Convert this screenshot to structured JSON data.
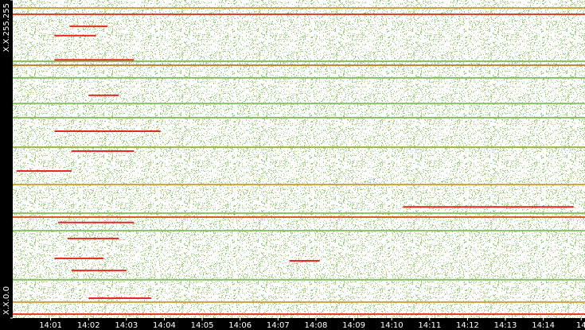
{
  "chart_data": {
    "type": "address-time-map",
    "xlim": [
      0,
      15.1
    ],
    "xticks": [
      {
        "value": 1,
        "label": "14:01"
      },
      {
        "value": 2,
        "label": "14:02"
      },
      {
        "value": 3,
        "label": "14:03"
      },
      {
        "value": 4,
        "label": "14:04"
      },
      {
        "value": 5,
        "label": "14:05"
      },
      {
        "value": 6,
        "label": "14:06"
      },
      {
        "value": 7,
        "label": "14:07"
      },
      {
        "value": 8,
        "label": "14:08"
      },
      {
        "value": 9,
        "label": "14:09"
      },
      {
        "value": 10,
        "label": "14:10"
      },
      {
        "value": 11,
        "label": "14:11"
      },
      {
        "value": 12,
        "label": "14:12"
      },
      {
        "value": 13,
        "label": "14:13"
      },
      {
        "value": 14,
        "label": "14:14"
      },
      {
        "value": 15,
        "label": "14"
      }
    ],
    "ylim": [
      0,
      65535
    ],
    "yticks": [
      {
        "value": 0,
        "label": "X.X.0.0"
      },
      {
        "value": 65535,
        "label": "X.X.255.255"
      }
    ],
    "stripes": [
      {
        "y": 63900,
        "start": 0,
        "end": 15.1,
        "color": "#c9a13f"
      },
      {
        "y": 62600,
        "start": 0,
        "end": 15.1,
        "color": "#e0391c"
      },
      {
        "y": 52900,
        "start": 0,
        "end": 15.1,
        "color": "#86bf62"
      },
      {
        "y": 52100,
        "start": 0,
        "end": 15.1,
        "color": "#c9842f"
      },
      {
        "y": 49500,
        "start": 0,
        "end": 15.1,
        "color": "#86bf62"
      },
      {
        "y": 44200,
        "start": 0,
        "end": 15.1,
        "color": "#86bf62"
      },
      {
        "y": 41300,
        "start": 0,
        "end": 15.1,
        "color": "#86bf62"
      },
      {
        "y": 35200,
        "start": 0,
        "end": 15.1,
        "color": "#9bb34a"
      },
      {
        "y": 27500,
        "start": 0,
        "end": 15.1,
        "color": "#c9a13f"
      },
      {
        "y": 21600,
        "start": 0,
        "end": 15.1,
        "color": "#86bf62"
      },
      {
        "y": 20800,
        "start": 0,
        "end": 15.1,
        "color": "#d9591f"
      },
      {
        "y": 18000,
        "start": 0,
        "end": 15.1,
        "color": "#86bf62"
      },
      {
        "y": 7900,
        "start": 0,
        "end": 15.1,
        "color": "#86bf62"
      },
      {
        "y": 3300,
        "start": 0,
        "end": 15.1,
        "color": "#c9a13f"
      },
      {
        "y": 800,
        "start": 0,
        "end": 15.1,
        "color": "#e0391c"
      },
      {
        "y": 60100,
        "start": 1.5,
        "end": 2.5,
        "color": "#e8261a"
      },
      {
        "y": 58200,
        "start": 1.1,
        "end": 2.2,
        "color": "#e8261a"
      },
      {
        "y": 53200,
        "start": 1.1,
        "end": 3.2,
        "color": "#e8261a"
      },
      {
        "y": 45900,
        "start": 2.0,
        "end": 2.8,
        "color": "#e8261a"
      },
      {
        "y": 38500,
        "start": 1.1,
        "end": 3.9,
        "color": "#e8261a"
      },
      {
        "y": 34400,
        "start": 1.55,
        "end": 3.2,
        "color": "#e8261a"
      },
      {
        "y": 30300,
        "start": 0.1,
        "end": 1.55,
        "color": "#e8261a"
      },
      {
        "y": 22900,
        "start": 10.3,
        "end": 14.8,
        "color": "#e8261a"
      },
      {
        "y": 19700,
        "start": 1.2,
        "end": 3.2,
        "color": "#e8261a"
      },
      {
        "y": 16400,
        "start": 1.45,
        "end": 2.8,
        "color": "#e8261a"
      },
      {
        "y": 12300,
        "start": 1.1,
        "end": 2.4,
        "color": "#e8261a"
      },
      {
        "y": 11800,
        "start": 7.3,
        "end": 8.1,
        "color": "#e8261a"
      },
      {
        "y": 9800,
        "start": 1.55,
        "end": 3.0,
        "color": "#e8261a"
      },
      {
        "y": 4100,
        "start": 2.0,
        "end": 3.65,
        "color": "#e8261a"
      }
    ]
  }
}
